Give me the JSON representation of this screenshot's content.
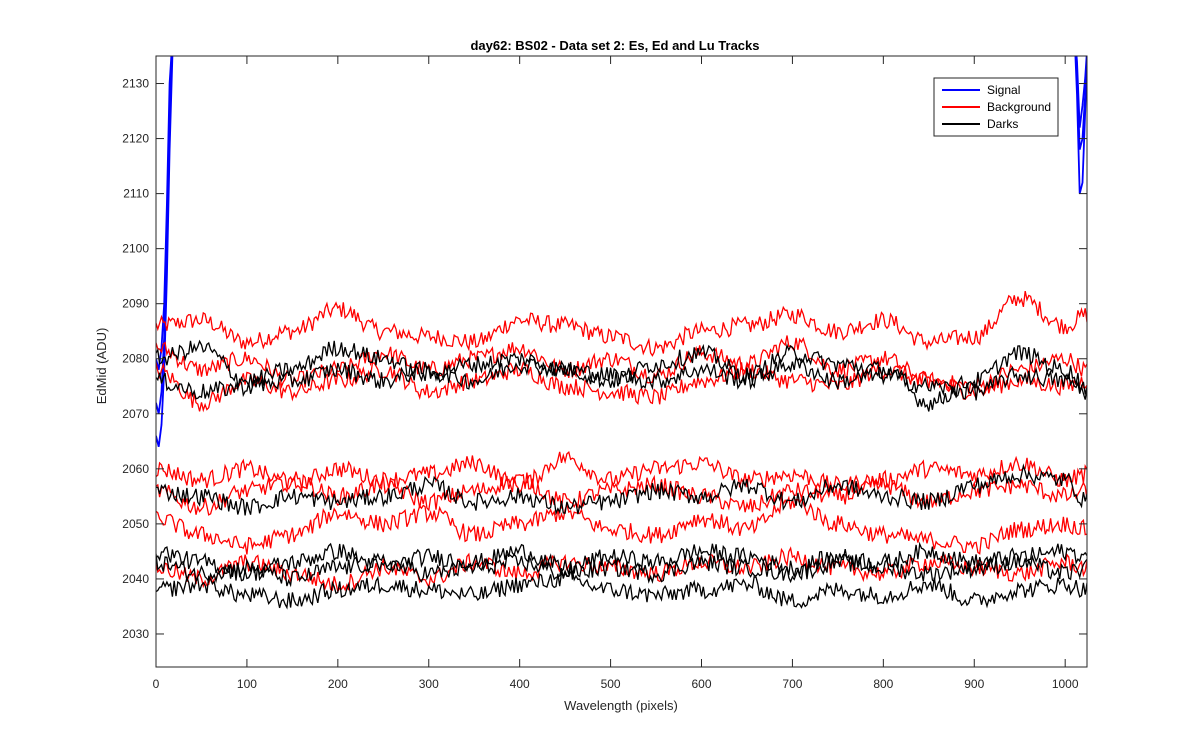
{
  "chart_data": {
    "type": "line",
    "title": "day62: BS02 - Data set 2: Es, Ed and Lu Tracks",
    "xlabel": "Wavelength (pixels)",
    "ylabel": "EdMid (ADU)",
    "xlim": [
      0,
      1024
    ],
    "ylim": [
      2024,
      2135
    ],
    "xticks": [
      0,
      100,
      200,
      300,
      400,
      500,
      600,
      700,
      800,
      900,
      1000
    ],
    "yticks": [
      2030,
      2040,
      2050,
      2060,
      2070,
      2080,
      2090,
      2100,
      2110,
      2120,
      2130
    ],
    "grid": false,
    "legend": {
      "placement": "top-right",
      "entries": [
        {
          "label": "Signal",
          "color": "#0000ff"
        },
        {
          "label": "Background",
          "color": "#ff0000"
        },
        {
          "label": "Darks",
          "color": "#000000"
        }
      ]
    },
    "series": [
      {
        "group": "Signal",
        "color": "#0000ff",
        "x": [
          0,
          3,
          6,
          9,
          12,
          15,
          18,
          21,
          1010,
          1013,
          1016,
          1019,
          1022,
          1024
        ],
        "y": [
          2066,
          2064,
          2068,
          2078,
          2095,
          2118,
          2135,
          2140,
          2140,
          2128,
          2110,
          2112,
          2125,
          2135
        ]
      },
      {
        "group": "Signal",
        "color": "#0000ff",
        "x": [
          0,
          3,
          6,
          9,
          12,
          15,
          18,
          21,
          1010,
          1013,
          1016,
          1019,
          1022,
          1024
        ],
        "y": [
          2072,
          2070,
          2074,
          2084,
          2101,
          2124,
          2137,
          2140,
          2140,
          2132,
          2118,
          2120,
          2128,
          2134
        ]
      },
      {
        "group": "Signal",
        "color": "#0000ff",
        "x": [
          0,
          3,
          6,
          9,
          12,
          15,
          18,
          21,
          1010,
          1013,
          1016,
          1019,
          1022,
          1024
        ],
        "y": [
          2080,
          2078,
          2082,
          2090,
          2108,
          2130,
          2138,
          2140,
          2140,
          2134,
          2122,
          2126,
          2131,
          2136
        ]
      },
      {
        "group": "Background",
        "color": "#ff0000",
        "x": [
          0,
          50,
          100,
          150,
          200,
          250,
          300,
          350,
          400,
          450,
          500,
          550,
          600,
          650,
          700,
          750,
          800,
          850,
          900,
          950,
          1000,
          1024
        ],
        "y": [
          2086,
          2087,
          2083,
          2085,
          2089,
          2085,
          2084,
          2083,
          2087,
          2086,
          2084,
          2082,
          2085,
          2086,
          2088,
          2085,
          2087,
          2083,
          2084,
          2091,
          2086,
          2088
        ]
      },
      {
        "group": "Background",
        "color": "#ff0000",
        "x": [
          0,
          50,
          100,
          150,
          200,
          250,
          300,
          350,
          400,
          450,
          500,
          550,
          600,
          650,
          700,
          750,
          800,
          850,
          900,
          950,
          1000,
          1024
        ],
        "y": [
          2082,
          2078,
          2080,
          2076,
          2078,
          2081,
          2078,
          2080,
          2082,
          2078,
          2080,
          2077,
          2081,
          2079,
          2083,
          2078,
          2080,
          2076,
          2075,
          2078,
          2080,
          2078
        ]
      },
      {
        "group": "Background",
        "color": "#ff0000",
        "x": [
          0,
          50,
          100,
          150,
          200,
          250,
          300,
          350,
          400,
          450,
          500,
          550,
          600,
          650,
          700,
          750,
          800,
          850,
          900,
          950,
          1000,
          1024
        ],
        "y": [
          2078,
          2072,
          2076,
          2074,
          2076,
          2078,
          2074,
          2076,
          2078,
          2075,
          2074,
          2073,
          2076,
          2078,
          2076,
          2075,
          2078,
          2076,
          2074,
          2076,
          2075,
          2076
        ]
      },
      {
        "group": "Background",
        "color": "#ff0000",
        "x": [
          0,
          50,
          100,
          150,
          200,
          250,
          300,
          350,
          400,
          450,
          500,
          550,
          600,
          650,
          700,
          750,
          800,
          850,
          900,
          950,
          1000,
          1024
        ],
        "y": [
          2060,
          2058,
          2060,
          2057,
          2060,
          2058,
          2059,
          2061,
          2057,
          2062,
          2058,
          2060,
          2061,
          2058,
          2059,
          2057,
          2058,
          2060,
          2059,
          2061,
          2058,
          2059
        ]
      },
      {
        "group": "Background",
        "color": "#ff0000",
        "x": [
          0,
          50,
          100,
          150,
          200,
          250,
          300,
          350,
          400,
          450,
          500,
          550,
          600,
          650,
          700,
          750,
          800,
          850,
          900,
          950,
          1000,
          1024
        ],
        "y": [
          2056,
          2053,
          2056,
          2058,
          2055,
          2057,
          2054,
          2056,
          2058,
          2054,
          2056,
          2057,
          2055,
          2053,
          2056,
          2055,
          2057,
          2054,
          2056,
          2057,
          2055,
          2056
        ]
      },
      {
        "group": "Background",
        "color": "#ff0000",
        "x": [
          0,
          50,
          100,
          150,
          200,
          250,
          300,
          350,
          400,
          450,
          500,
          550,
          600,
          650,
          700,
          750,
          800,
          850,
          900,
          950,
          1000,
          1024
        ],
        "y": [
          2051,
          2048,
          2046,
          2048,
          2052,
          2050,
          2052,
          2048,
          2050,
          2052,
          2049,
          2048,
          2051,
          2049,
          2054,
          2050,
          2048,
          2047,
          2046,
          2049,
          2050,
          2049
        ]
      },
      {
        "group": "Background",
        "color": "#ff0000",
        "x": [
          0,
          50,
          100,
          150,
          200,
          250,
          300,
          350,
          400,
          450,
          500,
          550,
          600,
          650,
          700,
          750,
          800,
          850,
          900,
          950,
          1000,
          1024
        ],
        "y": [
          2042,
          2040,
          2043,
          2041,
          2039,
          2042,
          2040,
          2043,
          2041,
          2043,
          2042,
          2041,
          2043,
          2042,
          2044,
          2042,
          2041,
          2043,
          2042,
          2041,
          2043,
          2042
        ]
      },
      {
        "group": "Darks",
        "color": "#000000",
        "x": [
          0,
          50,
          100,
          150,
          200,
          250,
          300,
          350,
          400,
          450,
          500,
          550,
          600,
          650,
          700,
          750,
          800,
          850,
          900,
          950,
          1000,
          1024
        ],
        "y": [
          2080,
          2082,
          2076,
          2078,
          2082,
          2080,
          2077,
          2079,
          2080,
          2078,
          2076,
          2079,
          2081,
          2077,
          2081,
          2079,
          2078,
          2072,
          2076,
          2081,
          2078,
          2075
        ]
      },
      {
        "group": "Darks",
        "color": "#000000",
        "x": [
          0,
          50,
          100,
          150,
          200,
          250,
          300,
          350,
          400,
          450,
          500,
          550,
          600,
          650,
          700,
          750,
          800,
          850,
          900,
          950,
          1000,
          1024
        ],
        "y": [
          2076,
          2074,
          2075,
          2076,
          2078,
          2076,
          2078,
          2076,
          2079,
          2078,
          2077,
          2076,
          2078,
          2076,
          2079,
          2076,
          2077,
          2075,
          2074,
          2077,
          2076,
          2074
        ]
      },
      {
        "group": "Darks",
        "color": "#000000",
        "x": [
          0,
          50,
          100,
          150,
          200,
          250,
          300,
          350,
          400,
          450,
          500,
          550,
          600,
          650,
          700,
          750,
          800,
          850,
          900,
          950,
          1000,
          1024
        ],
        "y": [
          2056,
          2055,
          2053,
          2055,
          2054,
          2055,
          2057,
          2054,
          2055,
          2053,
          2054,
          2056,
          2055,
          2057,
          2054,
          2057,
          2055,
          2054,
          2057,
          2059,
          2058,
          2054
        ]
      },
      {
        "group": "Darks",
        "color": "#000000",
        "x": [
          0,
          50,
          100,
          150,
          200,
          250,
          300,
          350,
          400,
          450,
          500,
          550,
          600,
          650,
          700,
          750,
          800,
          850,
          900,
          950,
          1000,
          1024
        ],
        "y": [
          2045,
          2043,
          2041,
          2043,
          2045,
          2042,
          2044,
          2043,
          2045,
          2042,
          2044,
          2043,
          2045,
          2044,
          2042,
          2044,
          2043,
          2045,
          2043,
          2044,
          2045,
          2044
        ]
      },
      {
        "group": "Darks",
        "color": "#000000",
        "x": [
          0,
          50,
          100,
          150,
          200,
          250,
          300,
          350,
          400,
          450,
          500,
          550,
          600,
          650,
          700,
          750,
          800,
          850,
          900,
          950,
          1000,
          1024
        ],
        "y": [
          2043,
          2041,
          2042,
          2040,
          2042,
          2043,
          2041,
          2042,
          2043,
          2041,
          2042,
          2041,
          2043,
          2042,
          2041,
          2043,
          2042,
          2041,
          2042,
          2043,
          2041,
          2042
        ]
      },
      {
        "group": "Darks",
        "color": "#000000",
        "x": [
          0,
          50,
          100,
          150,
          200,
          250,
          300,
          350,
          400,
          450,
          500,
          550,
          600,
          650,
          700,
          750,
          800,
          850,
          900,
          950,
          1000,
          1024
        ],
        "y": [
          2038,
          2039,
          2037,
          2036,
          2038,
          2039,
          2038,
          2037,
          2039,
          2040,
          2038,
          2037,
          2038,
          2039,
          2036,
          2038,
          2037,
          2039,
          2036,
          2038,
          2039,
          2038
        ]
      }
    ]
  }
}
